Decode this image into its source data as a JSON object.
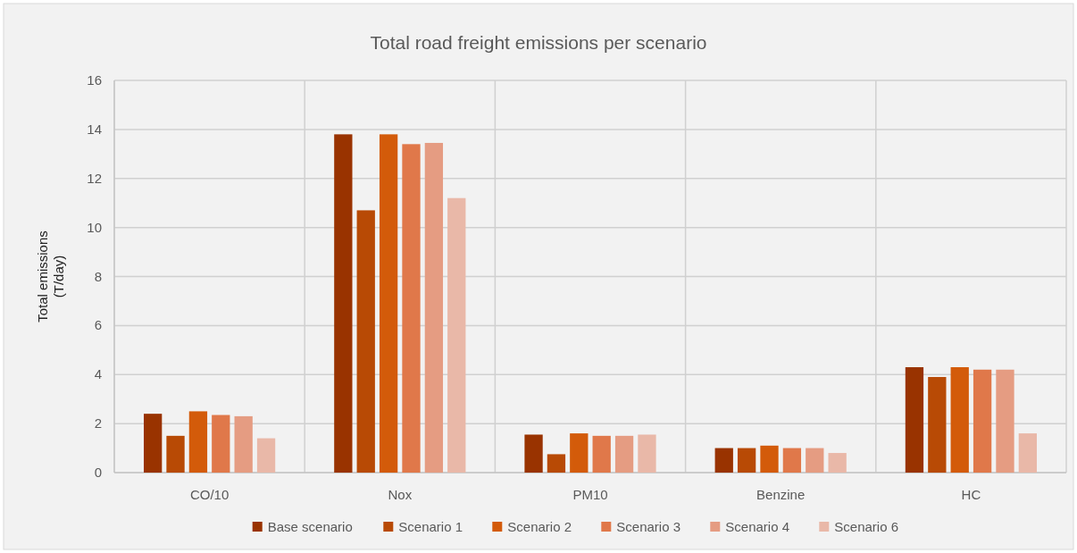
{
  "chart_data": {
    "type": "bar",
    "title": "Total road freight emissions per scenario",
    "ylabel": "Total emissions\n(T/day)",
    "categories": [
      "CO/10",
      "Nox",
      "PM10",
      "Benzine",
      "HC"
    ],
    "series": [
      {
        "name": "Base scenario",
        "color": "#993300",
        "values": [
          2.4,
          13.8,
          1.55,
          1.0,
          4.3
        ]
      },
      {
        "name": "Scenario 1",
        "color": "#b84a05",
        "values": [
          1.5,
          10.7,
          0.75,
          1.0,
          3.9
        ]
      },
      {
        "name": "Scenario 2",
        "color": "#d35b0a",
        "values": [
          2.5,
          13.8,
          1.6,
          1.1,
          4.3
        ]
      },
      {
        "name": "Scenario 3",
        "color": "#e0784a",
        "values": [
          2.35,
          13.4,
          1.5,
          1.0,
          4.2
        ]
      },
      {
        "name": "Scenario 4",
        "color": "#e59c82",
        "values": [
          2.3,
          13.45,
          1.5,
          1.0,
          4.2
        ]
      },
      {
        "name": "Scenario 6",
        "color": "#e9b8a8",
        "values": [
          1.4,
          11.2,
          1.55,
          0.8,
          1.6
        ]
      }
    ],
    "ylim": [
      0,
      16
    ],
    "yticks": [
      0,
      2,
      4,
      6,
      8,
      10,
      12,
      14,
      16
    ],
    "grid": true,
    "legend": "bottom"
  }
}
